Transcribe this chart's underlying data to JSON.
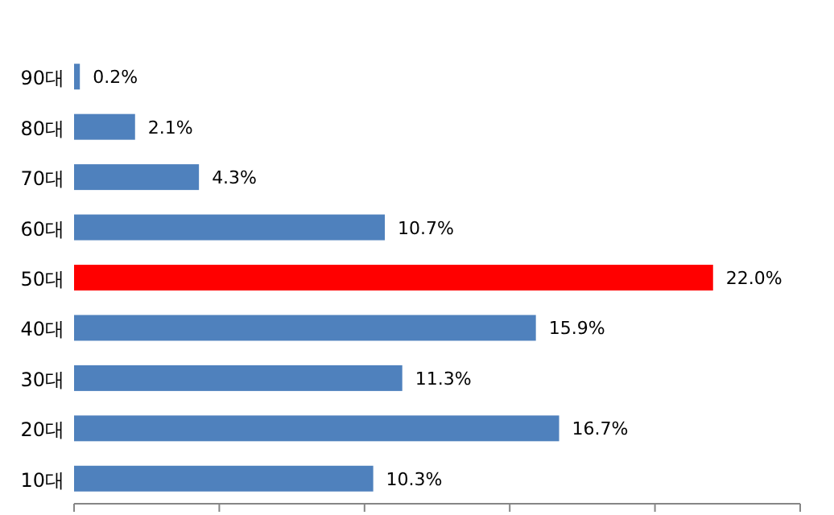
{
  "chart_data": {
    "type": "bar",
    "orientation": "horizontal",
    "tick_labels": "y",
    "categories": [
      "90대",
      "80대",
      "70대",
      "60대",
      "50대",
      "40대",
      "30대",
      "20대",
      "10대"
    ],
    "values": [
      0.2,
      2.1,
      4.3,
      10.7,
      22.0,
      15.9,
      11.3,
      16.7,
      10.3
    ],
    "value_labels": [
      "0.2%",
      "2.1%",
      "4.3%",
      "10.7%",
      "22.0%",
      "15.9%",
      "11.3%",
      "16.7%",
      "10.3%"
    ],
    "colors": [
      "#4f81bd",
      "#4f81bd",
      "#4f81bd",
      "#4f81bd",
      "#ff0000",
      "#4f81bd",
      "#4f81bd",
      "#4f81bd",
      "#4f81bd"
    ],
    "xlim": [
      0,
      25
    ],
    "xticks": [
      {
        "value": 0,
        "label": null
      },
      {
        "value": 5,
        "label": null
      },
      {
        "value": 10,
        "label": null
      },
      {
        "value": 15,
        "label": null
      },
      {
        "value": 20,
        "label": null
      },
      {
        "value": 25,
        "label": null
      }
    ],
    "grid": false
  }
}
